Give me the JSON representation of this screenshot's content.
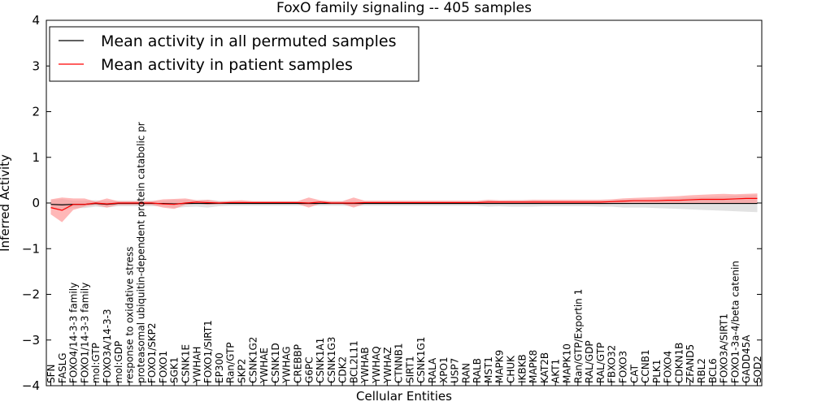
{
  "chart_data": {
    "type": "line",
    "title": "FoxO family signaling -- 405 samples",
    "xlabel": "Cellular Entities",
    "ylabel": "Inferred Activity",
    "ylim": [
      -4,
      4
    ],
    "yticks": [
      "−4",
      "−3",
      "−2",
      "−1",
      "0",
      "1",
      "2",
      "3",
      "4"
    ],
    "yticks_values": [
      -4,
      -3,
      -2,
      -1,
      0,
      1,
      2,
      3,
      4
    ],
    "legend": {
      "placement": "upper-left",
      "entries": [
        {
          "label": "Mean activity in all permuted samples",
          "color": "#000000"
        },
        {
          "label": "Mean activity in patient samples",
          "color": "#ff0000"
        }
      ]
    },
    "categories": [
      "SFN",
      "FASLG",
      "FOXO4/14-3-3 family",
      "FOXO1/14-3-3 family",
      "mol:GTP",
      "FOXO3A/14-3-3",
      "mol:GDP",
      "response to oxidative stress",
      "proteasomal ubiquitin-dependent protein catabolic pr",
      "FOXO1/SKP2",
      "FOXO1",
      "SGK1",
      "CSNK1E",
      "YWHAH",
      "FOXO1/SIRT1",
      "EP300",
      "Ran/GTP",
      "SKP2",
      "CSNK1G2",
      "YWHAE",
      "CSNK1D",
      "YWHAG",
      "CREBBP",
      "G6PC",
      "CSNK1A1",
      "CSNK1G3",
      "CDK2",
      "BCL2L11",
      "YWHAB",
      "YWHAQ",
      "YWHAZ",
      "CTNNB1",
      "SIRT1",
      "CSNK1G1",
      "RALA",
      "XPO1",
      "USP7",
      "RAN",
      "RALB",
      "MST1",
      "MAPK9",
      "CHUK",
      "IKBKB",
      "MAPK8",
      "KAT2B",
      "AKT1",
      "MAPK10",
      "Ran/GTP/Exportin 1",
      "RAL/GDP",
      "RAL/GTP",
      "FBXO32",
      "FOXO3",
      "CAT",
      "CCNB1",
      "PLK1",
      "FOXO4",
      "CDKN1B",
      "ZFAND5",
      "RBL2",
      "BCL6",
      "FOXO3A/SIRT1",
      "FOXO1-3a-4/beta catenin",
      "GADD45A",
      "SOD2"
    ],
    "series": [
      {
        "name": "Mean activity in all permuted samples",
        "color": "#000000",
        "values": [
          -0.03,
          -0.04,
          -0.03,
          -0.03,
          -0.01,
          -0.03,
          -0.01,
          -0.01,
          -0.01,
          -0.01,
          -0.01,
          -0.02,
          -0.01,
          -0.01,
          -0.01,
          -0.01,
          -0.01,
          -0.01,
          -0.01,
          -0.01,
          -0.01,
          -0.01,
          -0.01,
          -0.01,
          -0.01,
          -0.01,
          -0.01,
          -0.01,
          -0.01,
          -0.01,
          -0.01,
          -0.01,
          -0.01,
          -0.01,
          -0.01,
          -0.01,
          -0.01,
          -0.01,
          -0.01,
          -0.01,
          -0.01,
          -0.01,
          -0.01,
          -0.01,
          -0.01,
          -0.01,
          -0.01,
          -0.01,
          -0.01,
          -0.01,
          -0.01,
          -0.01,
          -0.01,
          -0.01,
          -0.01,
          -0.01,
          -0.01,
          -0.01,
          -0.01,
          -0.01,
          -0.01,
          -0.01,
          -0.01,
          -0.01
        ],
        "lower": [
          -0.12,
          -0.17,
          -0.11,
          -0.11,
          -0.08,
          -0.1,
          -0.07,
          -0.07,
          -0.07,
          -0.07,
          -0.07,
          -0.11,
          -0.09,
          -0.08,
          -0.1,
          -0.07,
          -0.06,
          -0.06,
          -0.06,
          -0.06,
          -0.06,
          -0.06,
          -0.06,
          -0.06,
          -0.06,
          -0.06,
          -0.06,
          -0.07,
          -0.06,
          -0.06,
          -0.06,
          -0.06,
          -0.06,
          -0.06,
          -0.06,
          -0.06,
          -0.06,
          -0.06,
          -0.06,
          -0.08,
          -0.07,
          -0.08,
          -0.08,
          -0.08,
          -0.07,
          -0.07,
          -0.07,
          -0.07,
          -0.07,
          -0.08,
          -0.08,
          -0.1,
          -0.1,
          -0.1,
          -0.11,
          -0.12,
          -0.13,
          -0.14,
          -0.15,
          -0.16,
          -0.17,
          -0.18,
          -0.19,
          -0.2
        ],
        "upper": [
          0.06,
          0.09,
          0.05,
          0.05,
          0.06,
          0.04,
          0.05,
          0.05,
          0.05,
          0.05,
          0.05,
          0.07,
          0.07,
          0.06,
          0.07,
          0.05,
          0.04,
          0.04,
          0.04,
          0.04,
          0.04,
          0.04,
          0.04,
          0.04,
          0.04,
          0.04,
          0.04,
          0.05,
          0.04,
          0.04,
          0.04,
          0.04,
          0.04,
          0.04,
          0.04,
          0.04,
          0.04,
          0.04,
          0.04,
          0.06,
          0.05,
          0.06,
          0.06,
          0.06,
          0.05,
          0.05,
          0.05,
          0.05,
          0.05,
          0.06,
          0.06,
          0.08,
          0.08,
          0.08,
          0.09,
          0.1,
          0.11,
          0.12,
          0.13,
          0.14,
          0.15,
          0.16,
          0.17,
          0.18
        ]
      },
      {
        "name": "Mean activity in patient samples",
        "color": "#ff0000",
        "values": [
          -0.1,
          -0.16,
          -0.03,
          -0.03,
          0.0,
          -0.02,
          0.0,
          0.0,
          0.0,
          0.0,
          -0.02,
          -0.03,
          0.0,
          0.02,
          0.01,
          0.0,
          0.01,
          0.01,
          0.01,
          0.01,
          0.01,
          0.01,
          0.01,
          0.0,
          0.02,
          0.0,
          0.0,
          0.0,
          0.01,
          0.01,
          0.01,
          0.01,
          0.01,
          0.01,
          0.01,
          0.01,
          0.01,
          0.01,
          0.01,
          0.02,
          0.02,
          0.02,
          0.02,
          0.02,
          0.02,
          0.02,
          0.02,
          0.02,
          0.02,
          0.02,
          0.03,
          0.04,
          0.05,
          0.05,
          0.05,
          0.06,
          0.06,
          0.07,
          0.08,
          0.08,
          0.08,
          0.09,
          0.1,
          0.1
        ],
        "lower": [
          -0.25,
          -0.42,
          -0.15,
          -0.08,
          -0.04,
          -0.1,
          -0.04,
          -0.04,
          -0.04,
          -0.04,
          -0.1,
          -0.13,
          -0.04,
          -0.01,
          -0.04,
          -0.02,
          -0.01,
          -0.01,
          -0.02,
          -0.02,
          -0.02,
          -0.02,
          -0.02,
          -0.1,
          -0.02,
          -0.02,
          -0.02,
          -0.1,
          -0.02,
          -0.02,
          -0.02,
          -0.02,
          -0.02,
          -0.02,
          -0.02,
          -0.02,
          -0.02,
          -0.02,
          -0.02,
          -0.02,
          -0.02,
          -0.02,
          -0.02,
          -0.02,
          -0.02,
          -0.02,
          -0.02,
          -0.02,
          -0.02,
          -0.02,
          -0.02,
          0.0,
          0.0,
          0.0,
          0.0,
          0.0,
          0.0,
          0.0,
          0.0,
          0.0,
          0.0,
          0.0,
          0.0,
          0.0
        ],
        "upper": [
          0.08,
          0.12,
          0.1,
          0.1,
          0.03,
          0.1,
          0.04,
          0.04,
          0.04,
          0.04,
          0.08,
          0.09,
          0.1,
          0.06,
          0.07,
          0.03,
          0.05,
          0.06,
          0.04,
          0.04,
          0.04,
          0.04,
          0.04,
          0.12,
          0.06,
          0.04,
          0.04,
          0.12,
          0.05,
          0.05,
          0.05,
          0.05,
          0.05,
          0.05,
          0.05,
          0.05,
          0.05,
          0.05,
          0.05,
          0.07,
          0.06,
          0.06,
          0.06,
          0.07,
          0.07,
          0.07,
          0.07,
          0.07,
          0.07,
          0.07,
          0.08,
          0.1,
          0.11,
          0.12,
          0.13,
          0.14,
          0.15,
          0.17,
          0.18,
          0.19,
          0.2,
          0.19,
          0.2,
          0.21
        ]
      }
    ]
  }
}
